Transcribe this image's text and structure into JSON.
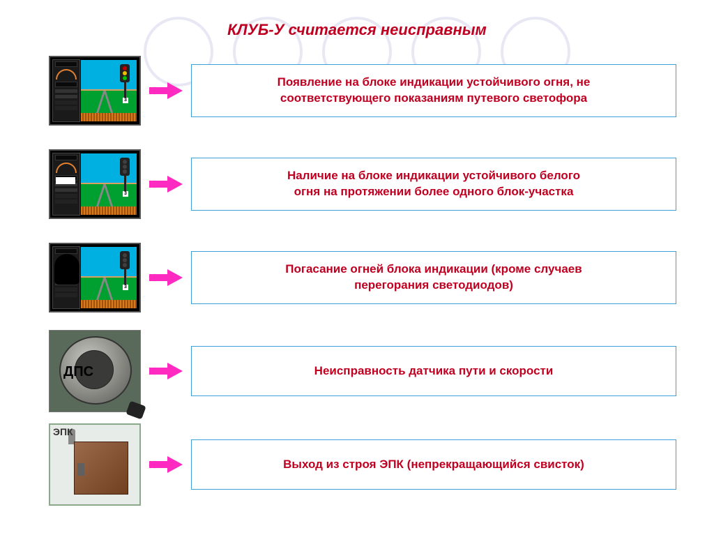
{
  "title": {
    "text": "КЛУБ-У считается неисправным",
    "color": "#c00020",
    "fontsize": 22
  },
  "colors": {
    "box_border": "#3aa0d8",
    "box_bg": "#ffffff",
    "text_color": "#c00020",
    "arrow_fill": "#ff2ac0",
    "circle_border": "#e8e8f4"
  },
  "text_fontsize": 17,
  "rows": [
    {
      "thumb": {
        "kind": "klub",
        "sky": "#00b0e0",
        "ground": "#00a030",
        "signal_lights": [
          "#c00000",
          "#e8c000",
          "#00c000"
        ],
        "white_patch": false
      },
      "lines": [
        "Появление на блоке индикации устойчивого огня, не",
        "соответствующего показаниям путевого светофора"
      ]
    },
    {
      "thumb": {
        "kind": "klub",
        "sky": "#00b0e0",
        "ground": "#00a030",
        "signal_lights": [
          "#404040",
          "#404040",
          "#404040"
        ],
        "white_patch": true
      },
      "lines": [
        "Наличие на блоке индикации устойчивого белого",
        "огня на протяжении более одного блок-участка"
      ]
    },
    {
      "thumb": {
        "kind": "klub",
        "sky": "#00b0e0",
        "ground": "#00a030",
        "signal_lights": [
          "#404040",
          "#404040",
          "#404040"
        ],
        "dark_overlay": true
      },
      "lines": [
        "Погасание огней блока индикации (кроме случаев",
        "перегорания светодиодов)"
      ]
    },
    {
      "thumb": {
        "kind": "dps",
        "label": "ДПС",
        "label_fontsize": 20
      },
      "lines": [
        "Неисправность датчика пути и скорости"
      ]
    },
    {
      "thumb": {
        "kind": "epk",
        "tag": "ЭПК"
      },
      "lines": [
        "Выход из строя ЭПК (непрекращающийся свисток)"
      ]
    }
  ]
}
